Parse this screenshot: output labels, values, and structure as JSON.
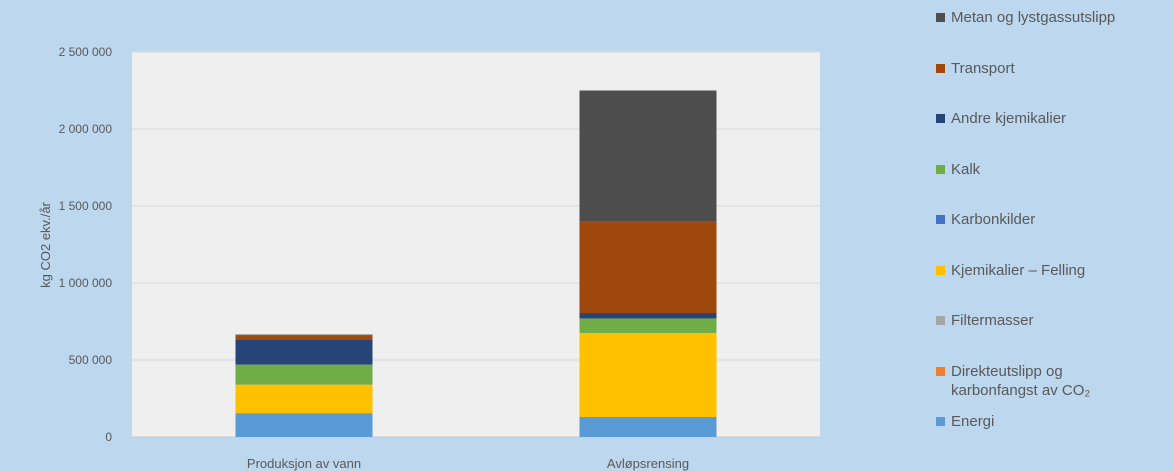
{
  "chart_data": {
    "type": "bar",
    "stacked": true,
    "categories": [
      "Produksjon av vann",
      "Avløpsrensing"
    ],
    "ylabel": "kg CO2 ekv./år",
    "ylim": [
      0,
      2500000
    ],
    "yticks": [
      0,
      500000,
      1000000,
      1500000,
      2000000,
      2500000
    ],
    "ytick_labels": [
      "0",
      "500 000",
      "1 000 000",
      "1 500 000",
      "2 000 000",
      "2 500 000"
    ],
    "grid": true,
    "legend_position": "right",
    "series": [
      {
        "name": "Energi",
        "color": "#5b9bd5",
        "values": [
          155000,
          130000
        ]
      },
      {
        "name": "Direkteutslipp og karbonfangst av CO₂",
        "color": "#ed7d31",
        "values": [
          0,
          0
        ]
      },
      {
        "name": "Filtermasser",
        "color": "#a5a5a5",
        "values": [
          0,
          0
        ]
      },
      {
        "name": "Kjemikalier – Felling",
        "color": "#ffc000",
        "values": [
          185000,
          545000
        ]
      },
      {
        "name": "Karbonkilder",
        "color": "#4472c4",
        "values": [
          0,
          0
        ]
      },
      {
        "name": "Kalk",
        "color": "#70ad47",
        "values": [
          130000,
          95000
        ]
      },
      {
        "name": "Andre kjemikalier",
        "color": "#264478",
        "values": [
          165000,
          35000
        ]
      },
      {
        "name": "Transport",
        "color": "#9e480e",
        "values": [
          25000,
          595000
        ]
      },
      {
        "name": "Metan og lystgassutslipp",
        "color": "#4d4d4d",
        "values": [
          5000,
          850000
        ]
      }
    ]
  }
}
